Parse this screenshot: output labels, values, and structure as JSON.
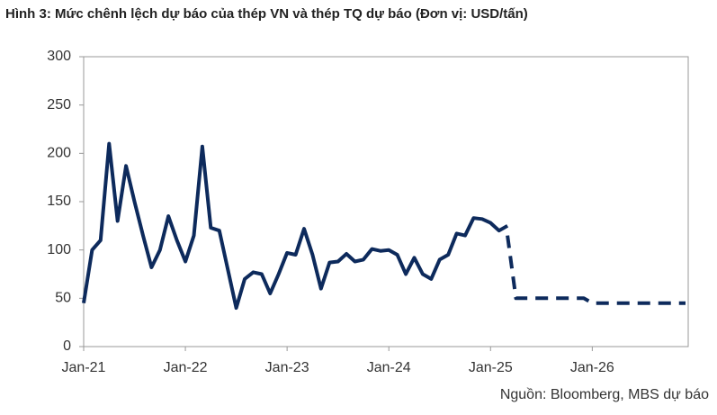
{
  "chart_data": {
    "type": "line",
    "title": "Hình 3: Mức chênh lệch dự báo của thép VN và thép TQ dự báo (Đơn vị: USD/tấn)",
    "source": "Nguồn: Bloomberg, MBS dự báo",
    "x": [
      "Jan-21",
      "Feb-21",
      "Mar-21",
      "Apr-21",
      "May-21",
      "Jun-21",
      "Jul-21",
      "Aug-21",
      "Sep-21",
      "Oct-21",
      "Nov-21",
      "Dec-21",
      "Jan-22",
      "Feb-22",
      "Mar-22",
      "Apr-22",
      "May-22",
      "Jun-22",
      "Jul-22",
      "Aug-22",
      "Sep-22",
      "Oct-22",
      "Nov-22",
      "Dec-22",
      "Jan-23",
      "Feb-23",
      "Mar-23",
      "Apr-23",
      "May-23",
      "Jun-23",
      "Jul-23",
      "Aug-23",
      "Sep-23",
      "Oct-23",
      "Nov-23",
      "Dec-23",
      "Jan-24",
      "Feb-24",
      "Mar-24",
      "Apr-24",
      "May-24",
      "Jun-24",
      "Jul-24",
      "Aug-24",
      "Sep-24",
      "Oct-24",
      "Nov-24",
      "Dec-24",
      "Jan-25",
      "Feb-25",
      "Mar-25",
      "Apr-25",
      "May-25",
      "Jun-25",
      "Jul-25",
      "Aug-25",
      "Sep-25",
      "Oct-25",
      "Nov-25",
      "Dec-25",
      "Jan-26",
      "Feb-26",
      "Mar-26",
      "Apr-26",
      "May-26",
      "Jun-26",
      "Jul-26",
      "Aug-26",
      "Sep-26",
      "Oct-26",
      "Nov-26",
      "Dec-26"
    ],
    "series": [
      {
        "color": "#0d2a5c",
        "dashed": false,
        "values": [
          45,
          100,
          110,
          210,
          130,
          187,
          150,
          115,
          82,
          100,
          135,
          110,
          88,
          115,
          207,
          123,
          120,
          80,
          40,
          70,
          77,
          75,
          55,
          75,
          97,
          95,
          122,
          95,
          60,
          87,
          88,
          96,
          88,
          90,
          101,
          99,
          100,
          95,
          75,
          92,
          75,
          70,
          90,
          95,
          117,
          115,
          133,
          132,
          128,
          120,
          125,
          null,
          null,
          null,
          null,
          null,
          null,
          null,
          null,
          null,
          null,
          null,
          null,
          null,
          null,
          null,
          null,
          null,
          null,
          null,
          null,
          null
        ]
      },
      {
        "color": "#0d2a5c",
        "dashed": true,
        "values": [
          null,
          null,
          null,
          null,
          null,
          null,
          null,
          null,
          null,
          null,
          null,
          null,
          null,
          null,
          null,
          null,
          null,
          null,
          null,
          null,
          null,
          null,
          null,
          null,
          null,
          null,
          null,
          null,
          null,
          null,
          null,
          null,
          null,
          null,
          null,
          null,
          null,
          null,
          null,
          null,
          null,
          null,
          null,
          null,
          null,
          null,
          null,
          null,
          null,
          null,
          115,
          50,
          50,
          50,
          50,
          50,
          50,
          50,
          50,
          50,
          45,
          45,
          45,
          45,
          45,
          45,
          45,
          45,
          45,
          45,
          45,
          45
        ]
      }
    ],
    "xlim": [
      "Jan-21",
      "Dec-26"
    ],
    "xticks": [
      "Jan-21",
      "Jan-22",
      "Jan-23",
      "Jan-24",
      "Jan-25",
      "Jan-26"
    ],
    "ylim": [
      0,
      300
    ],
    "yticks": [
      0,
      50,
      100,
      150,
      200,
      250,
      300
    ]
  }
}
